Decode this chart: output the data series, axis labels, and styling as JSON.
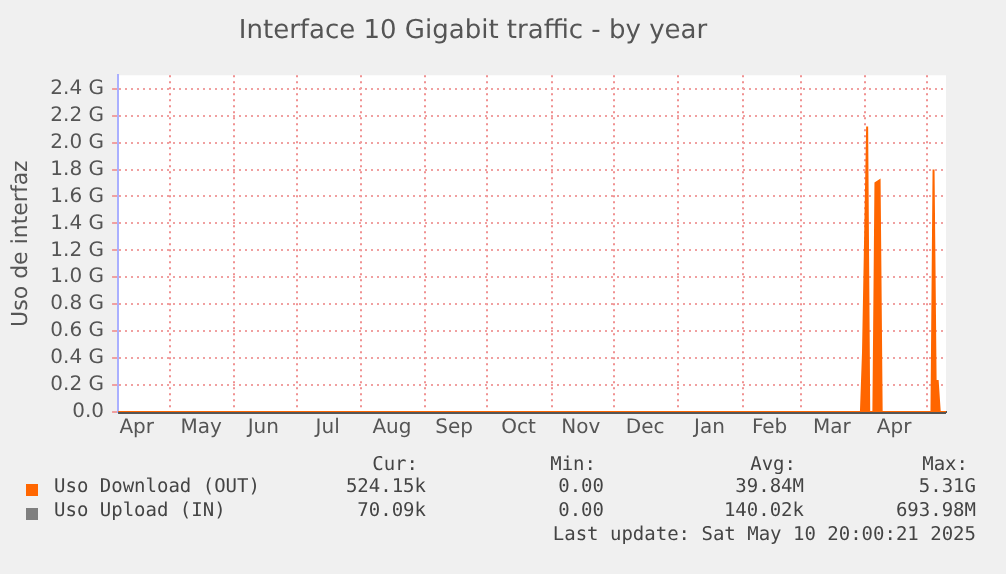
{
  "chart_data": {
    "type": "area",
    "title": "Interface 10 Gigabit traffic - by year",
    "ylabel": "Uso de interfaz",
    "x": [
      "2024-04-06",
      "2025-03-29",
      "2025-03-30",
      "2025-03-31",
      "2025-04-02",
      "2025-04-03",
      "2025-04-05",
      "2025-04-06",
      "2025-04-08",
      "2025-04-09",
      "2025-05-02",
      "2025-05-03",
      "2025-05-04",
      "2025-05-05",
      "2025-05-06",
      "2025-05-07",
      "2025-05-10"
    ],
    "series": [
      {
        "name": "Uso Download (OUT)",
        "color": "#ff6600",
        "values": [
          0,
          0,
          0,
          0.44,
          2.12,
          0,
          0,
          1.7,
          1.72,
          0,
          0,
          0,
          1.8,
          0.23,
          0.23,
          0,
          0
        ]
      },
      {
        "name": "Uso Upload (IN)",
        "color": "#7f7f7f",
        "values": [
          null,
          null,
          null,
          null,
          null,
          null,
          null,
          null,
          null,
          null,
          null,
          null,
          null,
          null,
          null,
          null,
          null
        ]
      }
    ],
    "xlim": [
      "2024-04-06",
      "2025-05-10"
    ],
    "xticks": [
      {
        "value": "2024-04-15",
        "label": "Apr"
      },
      {
        "value": "2024-05-01",
        "label": null
      },
      {
        "value": "2024-05-16",
        "label": "May"
      },
      {
        "value": "2024-06-01",
        "label": null
      },
      {
        "value": "2024-06-15",
        "label": "Jun"
      },
      {
        "value": "2024-07-01",
        "label": null
      },
      {
        "value": "2024-07-16",
        "label": "Jul"
      },
      {
        "value": "2024-08-01",
        "label": null
      },
      {
        "value": "2024-08-16",
        "label": "Aug"
      },
      {
        "value": "2024-09-01",
        "label": null
      },
      {
        "value": "2024-09-15",
        "label": "Sep"
      },
      {
        "value": "2024-10-01",
        "label": null
      },
      {
        "value": "2024-10-16",
        "label": "Oct"
      },
      {
        "value": "2024-11-01",
        "label": null
      },
      {
        "value": "2024-11-15",
        "label": "Nov"
      },
      {
        "value": "2024-12-01",
        "label": null
      },
      {
        "value": "2024-12-16",
        "label": "Dec"
      },
      {
        "value": "2025-01-01",
        "label": null
      },
      {
        "value": "2025-01-16",
        "label": "Jan"
      },
      {
        "value": "2025-02-01",
        "label": null
      },
      {
        "value": "2025-02-14",
        "label": "Feb"
      },
      {
        "value": "2025-03-01",
        "label": null
      },
      {
        "value": "2025-03-16",
        "label": "Mar"
      },
      {
        "value": "2025-04-01",
        "label": null
      },
      {
        "value": "2025-04-15",
        "label": "Apr"
      },
      {
        "value": "2025-05-01",
        "label": null
      }
    ],
    "ylim": [
      0,
      2.5
    ],
    "yticks": [
      {
        "value": 0,
        "label": "0.0"
      },
      {
        "value": 0.2,
        "label": "0.2 G"
      },
      {
        "value": 0.4,
        "label": "0.4 G"
      },
      {
        "value": 0.6,
        "label": "0.6 G"
      },
      {
        "value": 0.8,
        "label": "0.8 G"
      },
      {
        "value": 1,
        "label": "1.0 G"
      },
      {
        "value": 1.2,
        "label": "1.2 G"
      },
      {
        "value": 1.4,
        "label": "1.4 G"
      },
      {
        "value": 1.6,
        "label": "1.6 G"
      },
      {
        "value": 1.8,
        "label": "1.8 G"
      },
      {
        "value": 2,
        "label": "2.0 G"
      },
      {
        "value": 2.2,
        "label": "2.2 G"
      },
      {
        "value": 2.4,
        "label": "2.4 G"
      }
    ],
    "grid": true,
    "legend": "bottom",
    "annotations": [
      "Cur:",
      "Min:",
      "Avg:",
      "Max:",
      "524.15k",
      "0.00",
      "39.84M",
      "5.31G",
      "70.09k",
      "0.00",
      "140.02k",
      "693.98M",
      "Last update: Sat May 10 20:00:21 2025"
    ]
  }
}
